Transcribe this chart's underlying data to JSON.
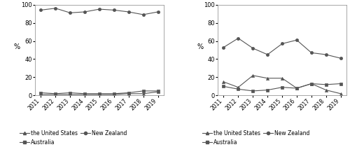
{
  "years": [
    2011,
    2012,
    2013,
    2014,
    2015,
    2016,
    2017,
    2018,
    2019
  ],
  "wmp": {
    "us": [
      1,
      1,
      1,
      1,
      1,
      1,
      2,
      2,
      4
    ],
    "aus": [
      3,
      2,
      3,
      2,
      2,
      2,
      3,
      5,
      5
    ],
    "nz": [
      94,
      96,
      91,
      92,
      95,
      94,
      92,
      89,
      92
    ]
  },
  "smp": {
    "us": [
      15,
      9,
      22,
      19,
      19,
      8,
      13,
      6,
      2
    ],
    "aus": [
      10,
      7,
      5,
      6,
      9,
      8,
      13,
      12,
      13
    ],
    "nz": [
      53,
      63,
      52,
      45,
      57,
      61,
      47,
      45,
      41
    ]
  },
  "line_color": "#555555",
  "marker_us": "^",
  "marker_aus": "s",
  "marker_nz": "o",
  "ylim": [
    0,
    100
  ],
  "yticks": [
    0,
    20,
    40,
    60,
    80,
    100
  ],
  "ylabel": "%",
  "legend_us": "the United States",
  "legend_aus": "Australia",
  "legend_nz": "New Zealand",
  "background": "#ffffff"
}
